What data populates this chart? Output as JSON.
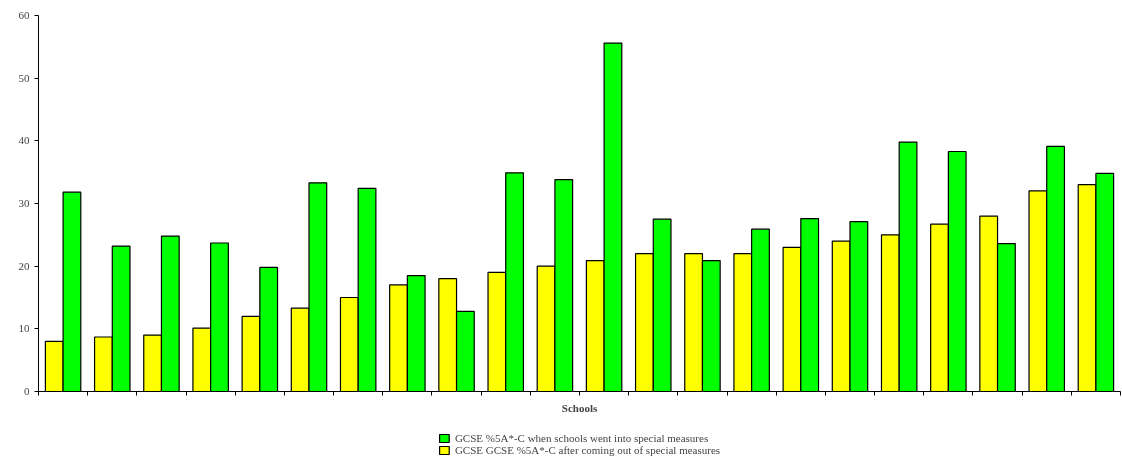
{
  "chart_data": {
    "type": "bar",
    "xlabel": "Schools",
    "categories": [
      null,
      null,
      null,
      null,
      null,
      null,
      null,
      null,
      null,
      null,
      null,
      null,
      null,
      null,
      null,
      null,
      null,
      null,
      null,
      null,
      null,
      null
    ],
    "series": [
      {
        "name": "GCSE GCSE %5A*-C after coming out of special measures",
        "color": "#ffff00",
        "values": [
          8,
          8.7,
          9,
          10.1,
          12,
          13.3,
          15,
          17,
          18,
          19,
          20,
          20.9,
          22,
          22,
          22,
          23,
          24,
          25,
          26.7,
          28,
          32,
          33
        ]
      },
      {
        "name": "GCSE %5A*-C when schools went into special measures",
        "color": "#00ff00",
        "values": [
          31.8,
          23.2,
          24.8,
          23.7,
          19.8,
          33.3,
          32.4,
          18.5,
          12.8,
          34.9,
          33.8,
          55.6,
          27.5,
          20.9,
          25.9,
          27.6,
          27.1,
          39.8,
          38.3,
          23.6,
          39.1,
          34.8
        ]
      }
    ],
    "ylim": [
      0,
      60
    ],
    "yticks": [
      0,
      10,
      20,
      30,
      40,
      50,
      60
    ],
    "grid": false,
    "legend": "bottom",
    "tick_labels": "y"
  }
}
